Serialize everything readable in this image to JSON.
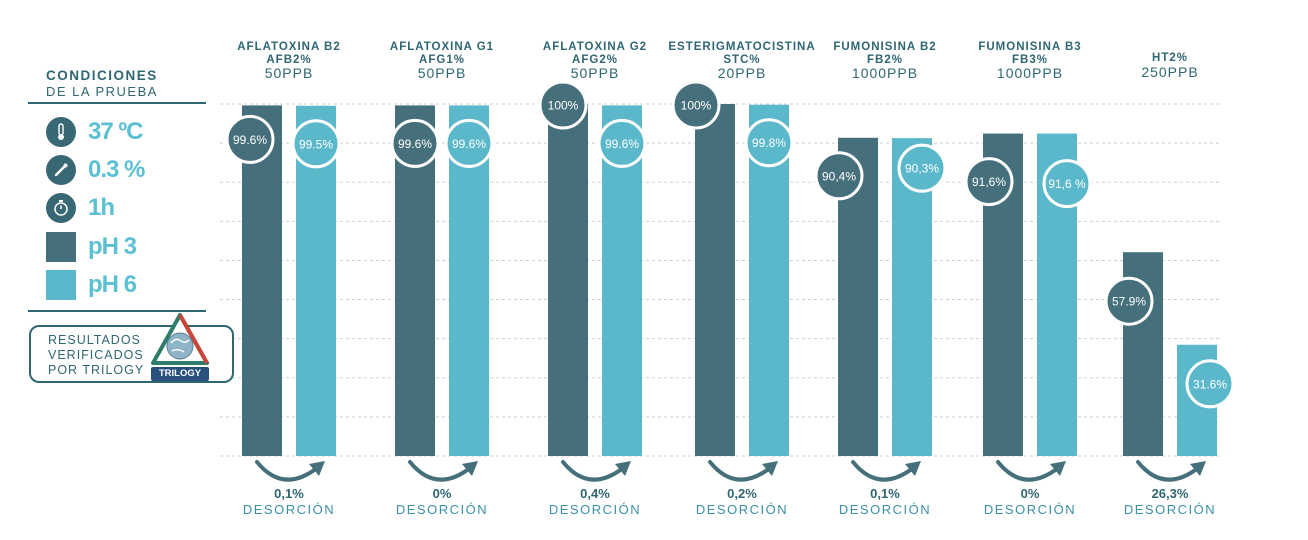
{
  "conditions": {
    "title": "CONDICIONES",
    "subtitle": "DE LA PRUEBA",
    "items": [
      {
        "icon": "thermometer-icon",
        "text": "37 ºC"
      },
      {
        "icon": "dropper-icon",
        "text": "0.3 %"
      },
      {
        "icon": "stopwatch-icon",
        "text": "1h"
      },
      {
        "icon": "ph3-swatch",
        "text": "pH 3"
      },
      {
        "icon": "ph6-swatch",
        "text": "pH 6"
      }
    ]
  },
  "badge": {
    "lines": [
      "RESULTADOS",
      "VERIFICADOS",
      "POR TRILOGY"
    ],
    "brand": "TRILOGY"
  },
  "colors": {
    "ph3": "#446f7b",
    "ph6": "#5bb8cb",
    "text_dark": "#2f6673",
    "grid": "#cfcfcf"
  },
  "chart_data": {
    "type": "bar",
    "ylim": [
      0,
      100
    ],
    "grid": true,
    "legend": "left panel",
    "categories": [
      {
        "name": "AFLATOXINA B2",
        "code": "AFB2%",
        "dose": "50PPB"
      },
      {
        "name": "AFLATOXINA G1",
        "code": "AFG1%",
        "dose": "50PPB"
      },
      {
        "name": "AFLATOXINA G2",
        "code": "AFG2%",
        "dose": "50PPB"
      },
      {
        "name": "ESTERIGMATOCISTINA",
        "code": "STC%",
        "dose": "20PPB"
      },
      {
        "name": "FUMONISINA B2",
        "code": "FB2%",
        "dose": "1000PPB"
      },
      {
        "name": "FUMONISINA B3",
        "code": "FB3%",
        "dose": "1000PPB"
      },
      {
        "name": "",
        "code": "HT2%",
        "dose": "250PPB"
      }
    ],
    "series": [
      {
        "name": "pH 3",
        "values": [
          99.6,
          99.6,
          100,
          100,
          90.4,
          91.6,
          57.9
        ],
        "labels": [
          "99.6%",
          "99.6%",
          "100%",
          "100%",
          "90,4%",
          "91,6%",
          "57.9%"
        ]
      },
      {
        "name": "pH 6",
        "values": [
          99.5,
          99.6,
          99.6,
          99.8,
          90.3,
          91.6,
          31.6
        ],
        "labels": [
          "99.5%",
          "99.6%",
          "99.6%",
          "99.8%",
          "90,3%",
          "91,6 %",
          "31.6%"
        ]
      }
    ],
    "desorption": {
      "values": [
        "0,1%",
        "0%",
        "0,4%",
        "0,2%",
        "0,1%",
        "0%",
        "26,3%"
      ],
      "label": "DESORCIÓN"
    }
  }
}
